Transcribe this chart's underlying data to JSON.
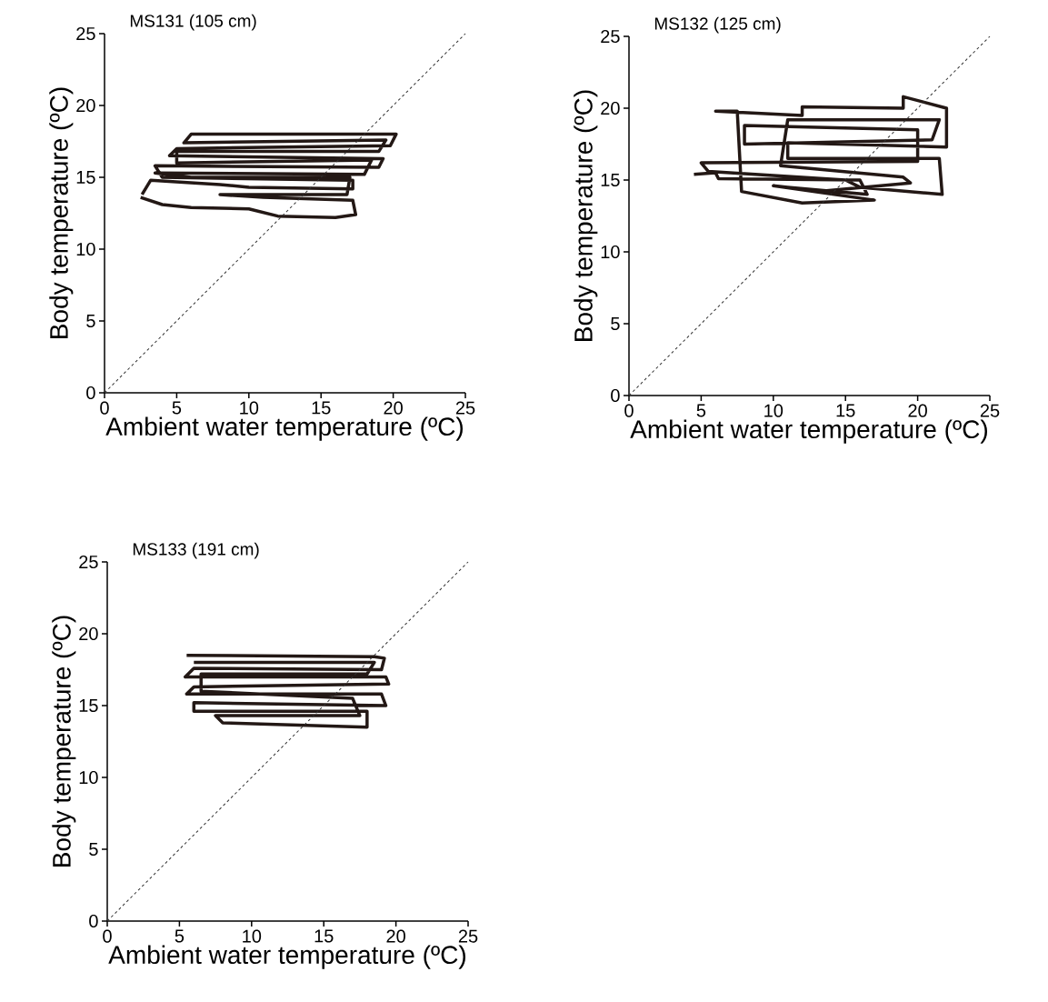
{
  "chart_data": [
    {
      "type": "line",
      "title": "MS131 (105 cm)",
      "xlabel": "Ambient water temperature (ºC)",
      "ylabel": "Body temperature (ºC)",
      "xlim": [
        0,
        25
      ],
      "ylim": [
        0,
        25
      ],
      "xticks": [
        0,
        5,
        10,
        15,
        20,
        25
      ],
      "yticks": [
        0,
        5,
        10,
        15,
        20,
        25
      ],
      "series": [
        {
          "color": "#231815",
          "x": [
            2.6,
            3.2,
            8,
            10,
            17.2,
            17.2,
            4,
            3.5,
            19,
            19.3,
            4.5,
            5,
            19.8,
            20.2,
            6,
            5.5,
            19.5,
            19,
            5,
            5,
            18.5,
            18,
            3.5,
            6,
            17,
            16.8,
            8,
            11,
            17.2,
            17.4,
            16,
            12,
            10,
            6,
            4,
            2.5
          ],
          "values": [
            13.8,
            14.8,
            14.5,
            14.3,
            14.2,
            14.8,
            15.0,
            15.8,
            15.7,
            16.3,
            16.5,
            17,
            17.2,
            18,
            18,
            17.4,
            17.6,
            16.8,
            16.8,
            16.0,
            16.2,
            15.2,
            15.3,
            15.0,
            15.0,
            13.8,
            13.8,
            13.6,
            13.4,
            12.4,
            12.2,
            12.3,
            12.8,
            12.9,
            13.1,
            13.6
          ]
        },
        {
          "color": "#333333",
          "line_style": "dashed",
          "x": [
            0,
            25
          ],
          "values": [
            0,
            25
          ]
        }
      ]
    },
    {
      "type": "line",
      "title": "MS132 (125 cm)",
      "xlabel": "Ambient water temperature (ºC)",
      "ylabel": "Body temperature (ºC)",
      "xlim": [
        0,
        25
      ],
      "ylim": [
        0,
        25
      ],
      "xticks": [
        0,
        5,
        10,
        15,
        20,
        25
      ],
      "yticks": [
        0,
        5,
        10,
        15,
        20,
        25
      ],
      "series": [
        {
          "color": "#231815",
          "x": [
            4.5,
            6,
            6.2,
            16,
            16.5,
            11,
            10,
            17,
            12,
            7.8,
            7.5,
            6,
            12,
            12,
            19,
            19,
            22,
            22,
            11,
            11,
            21.5,
            21.7,
            16,
            15,
            5.5,
            5,
            20,
            20,
            8,
            8,
            21,
            21.5,
            11,
            10.5,
            19,
            19.5,
            13
          ],
          "values": [
            15.4,
            15.5,
            15.1,
            15.0,
            14.0,
            14.5,
            14.6,
            13.6,
            13.4,
            14.2,
            19.8,
            19.8,
            19.5,
            20.1,
            20,
            20.8,
            20,
            17.3,
            17.6,
            16.5,
            16.5,
            14,
            14.5,
            15,
            15.6,
            16.2,
            16.3,
            18.5,
            18.8,
            17.5,
            17.8,
            19.2,
            19.2,
            16,
            15.2,
            14.8,
            14.2
          ]
        },
        {
          "color": "#333333",
          "line_style": "dashed",
          "x": [
            0,
            25
          ],
          "values": [
            0,
            25
          ]
        }
      ]
    },
    {
      "type": "line",
      "title": "MS133 (191 cm)",
      "xlabel": "Ambient water temperature (ºC)",
      "ylabel": "Body temperature (ºC)",
      "xlim": [
        0,
        25
      ],
      "ylim": [
        0,
        25
      ],
      "xticks": [
        0,
        5,
        10,
        15,
        20,
        25
      ],
      "yticks": [
        0,
        5,
        10,
        15,
        20,
        25
      ],
      "series": [
        {
          "color": "#231815",
          "x": [
            5.5,
            18.5,
            19.2,
            19,
            6,
            5.4,
            19.3,
            19.5,
            6,
            5.5,
            19,
            19.3,
            6,
            6,
            18,
            18,
            8,
            7.5,
            17.5,
            17,
            6.5,
            6.5,
            18,
            18.5,
            6
          ],
          "values": [
            18.5,
            18.4,
            18.3,
            17.5,
            17.6,
            17.0,
            17.0,
            16.5,
            16.3,
            15.8,
            15.8,
            15.0,
            15.2,
            14.6,
            14.6,
            13.5,
            13.8,
            14.3,
            14.3,
            15.5,
            16.0,
            17.2,
            17.2,
            18.0,
            18.0
          ]
        },
        {
          "color": "#333333",
          "line_style": "dashed",
          "x": [
            0,
            25
          ],
          "values": [
            0,
            25
          ]
        }
      ]
    }
  ]
}
